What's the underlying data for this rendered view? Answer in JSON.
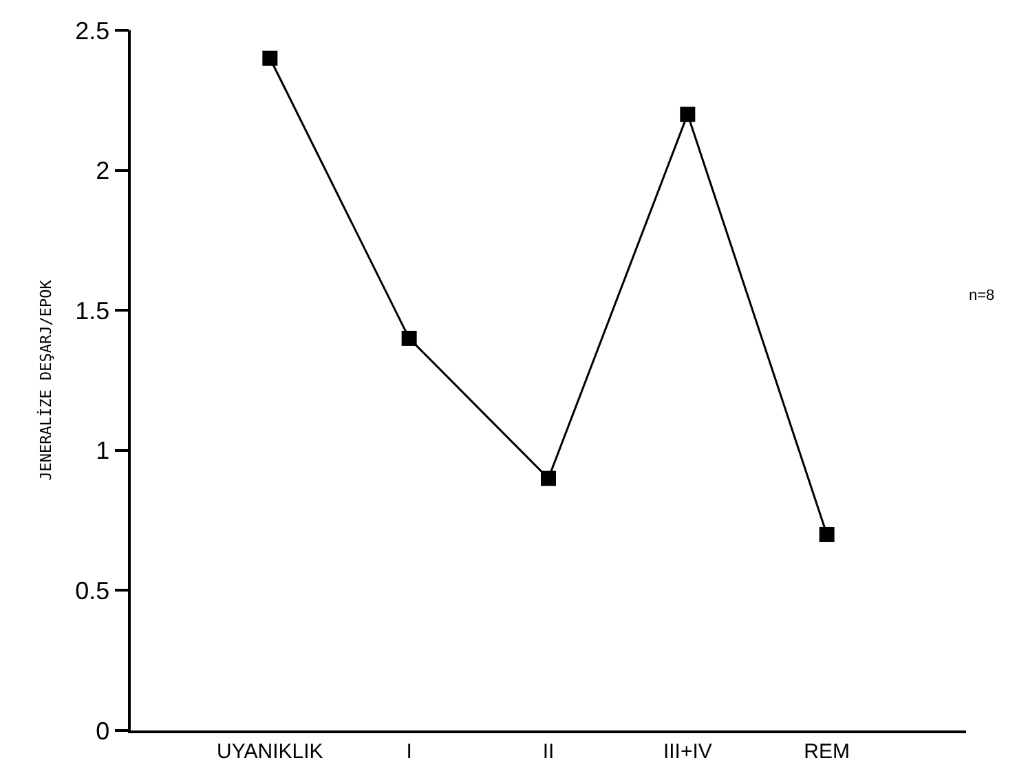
{
  "chart_data": {
    "type": "line",
    "ylabel": "JENERALİZE DEŞARJ/EPOK",
    "categories": [
      "UYANIKLIK",
      "I",
      "II",
      "III+IV",
      "REM"
    ],
    "series": [
      {
        "color": "#000000",
        "values": [
          2.4,
          1.4,
          0.9,
          2.2,
          0.7
        ]
      }
    ],
    "ylim": [
      0,
      2.5
    ],
    "yticks": [
      0,
      0.5,
      1,
      1.5,
      2,
      2.5
    ],
    "annotations": [
      "n=8"
    ],
    "marker": "square",
    "line_style": "solid"
  }
}
